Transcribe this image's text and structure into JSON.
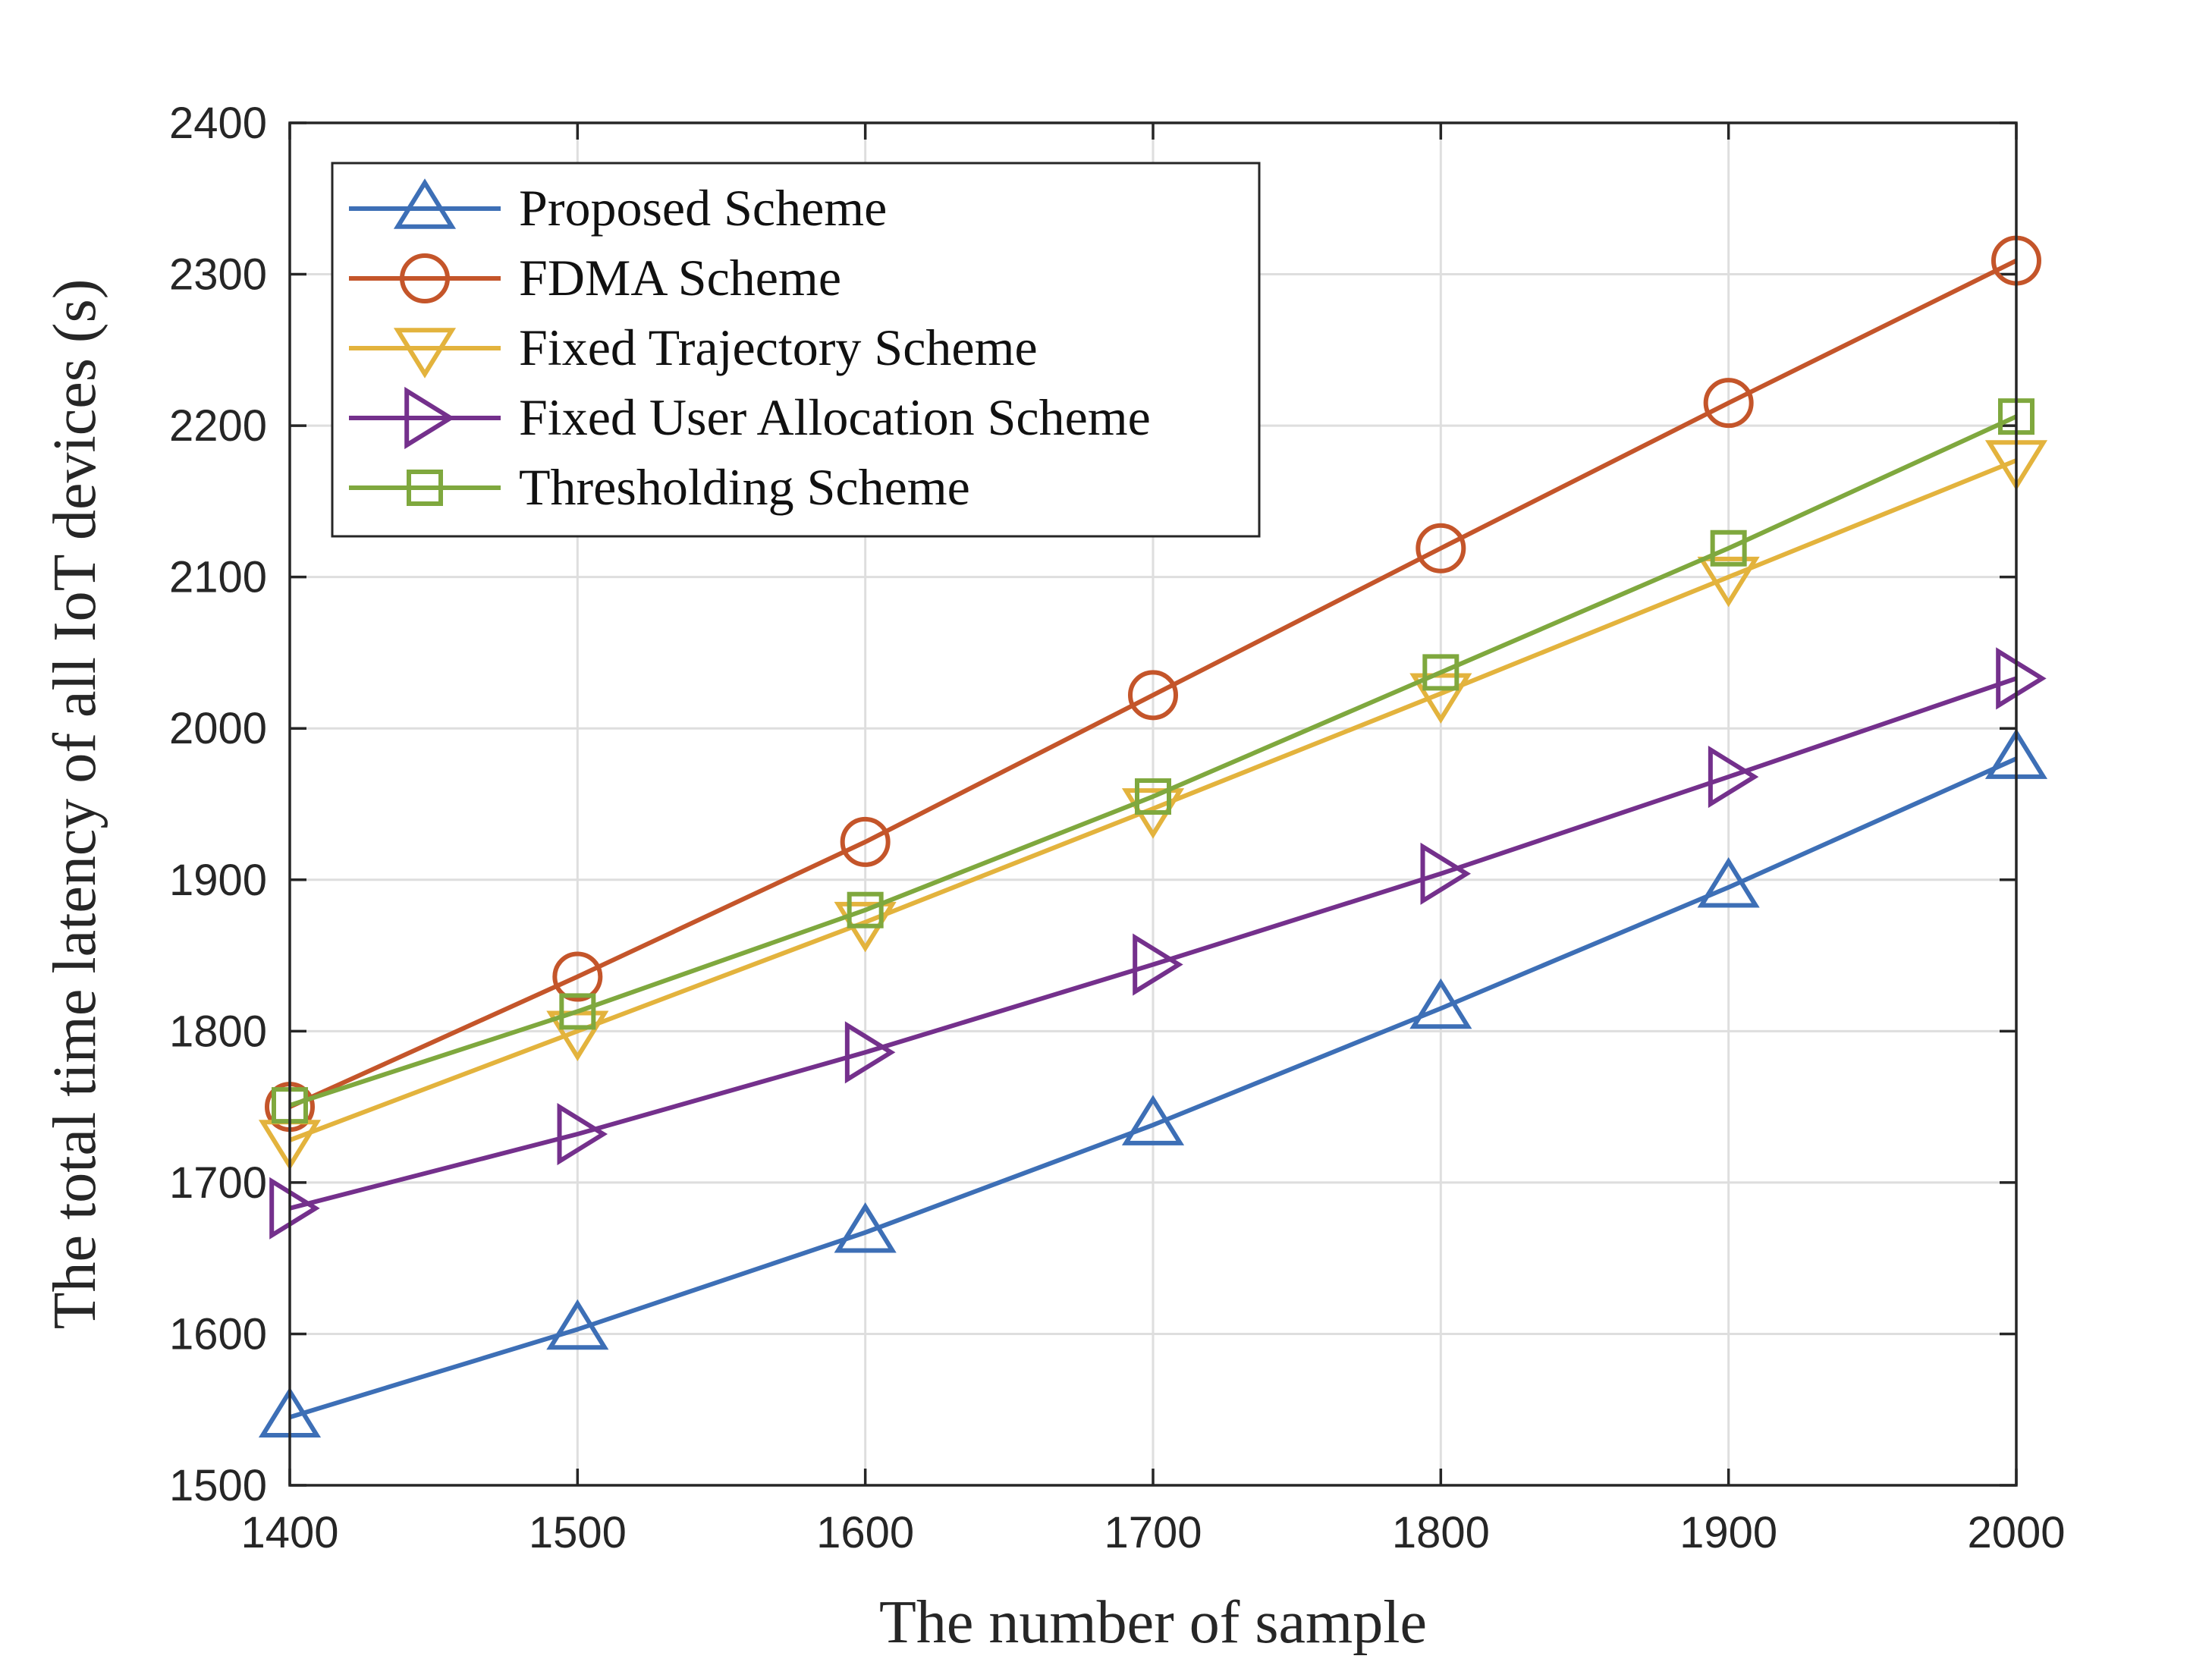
{
  "chart_data": {
    "type": "line",
    "title": "",
    "xlabel": "The number of sample",
    "ylabel": "The total time latency of all IoT devices (s)",
    "xlim": [
      1400,
      2000
    ],
    "ylim": [
      1500,
      2400
    ],
    "x": [
      1400,
      1500,
      1600,
      1700,
      1800,
      1900,
      2000
    ],
    "x_ticks": [
      1400,
      1500,
      1600,
      1700,
      1800,
      1900,
      2000
    ],
    "y_ticks": [
      1500,
      1600,
      1700,
      1800,
      1900,
      2000,
      2100,
      2200,
      2300,
      2400
    ],
    "grid": true,
    "legend_position": "top-left",
    "series": [
      {
        "name": "Proposed Scheme",
        "color": "#3d6fb6",
        "marker": "triangle-up",
        "values": [
          1545,
          1603,
          1667,
          1738,
          1815,
          1895,
          1980
        ]
      },
      {
        "name": "FDMA Scheme",
        "color": "#c4552a",
        "marker": "circle",
        "values": [
          1750,
          1836,
          1925,
          2022,
          2119,
          2215,
          2309
        ]
      },
      {
        "name": "Fixed Trajectory Scheme",
        "color": "#e3b33d",
        "marker": "triangle-down",
        "values": [
          1728,
          1800,
          1872,
          1947,
          2023,
          2100,
          2177
        ]
      },
      {
        "name": "Fixed User Allocation Scheme",
        "color": "#74308c",
        "marker": "triangle-right",
        "values": [
          1683,
          1732,
          1786,
          1844,
          1904,
          1968,
          2033
        ]
      },
      {
        "name": "Thresholding Scheme",
        "color": "#7fa83e",
        "marker": "square",
        "values": [
          1751,
          1813,
          1880,
          1955,
          2037,
          2119,
          2206
        ]
      }
    ]
  }
}
